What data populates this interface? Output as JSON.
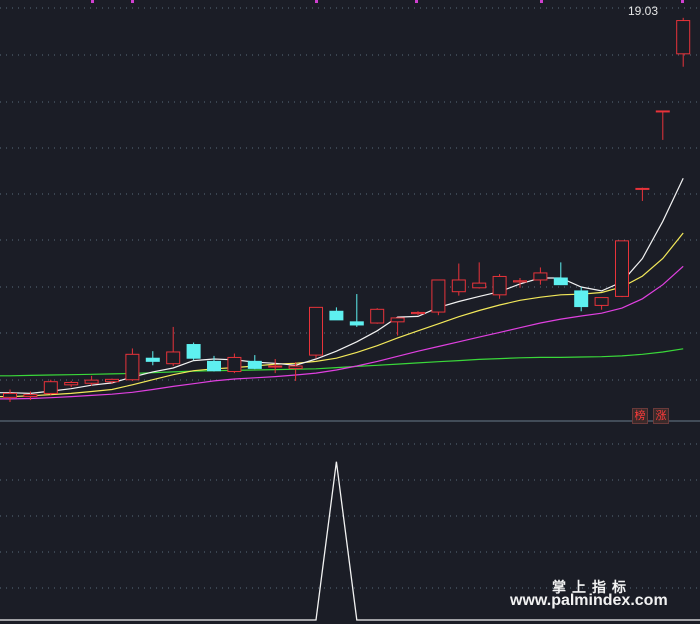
{
  "chart_data": {
    "type": "candlestick",
    "price_label": "19.03",
    "badges": [
      "榜",
      "涨"
    ],
    "watermark": {
      "line1": "掌上指标",
      "line2": "www.palmindex.com"
    },
    "colors": {
      "up": "#e8333a",
      "down": "#5ef0f0",
      "ma5": "#f2f2f2",
      "ma10": "#f2e85a",
      "ma20": "#e040e0",
      "ma60": "#3ad83a",
      "indicator": "#f2f2f2",
      "grid": "#5a6a7a"
    },
    "ylim": [
      9,
      19.3
    ],
    "candles": [
      {
        "o": 9.4,
        "h": 9.6,
        "l": 9.28,
        "c": 9.5
      },
      {
        "o": 9.42,
        "h": 9.55,
        "l": 9.33,
        "c": 9.47
      },
      {
        "o": 9.5,
        "h": 9.85,
        "l": 9.45,
        "c": 9.8
      },
      {
        "o": 9.72,
        "h": 9.82,
        "l": 9.66,
        "c": 9.78
      },
      {
        "o": 9.76,
        "h": 9.95,
        "l": 9.7,
        "c": 9.84
      },
      {
        "o": 9.8,
        "h": 9.88,
        "l": 9.74,
        "c": 9.86
      },
      {
        "o": 9.85,
        "h": 10.65,
        "l": 9.82,
        "c": 10.5
      },
      {
        "o": 10.4,
        "h": 10.58,
        "l": 10.22,
        "c": 10.32
      },
      {
        "o": 10.26,
        "h": 11.2,
        "l": 10.2,
        "c": 10.56
      },
      {
        "o": 10.75,
        "h": 10.8,
        "l": 10.35,
        "c": 10.4
      },
      {
        "o": 10.32,
        "h": 10.46,
        "l": 10.06,
        "c": 10.08
      },
      {
        "o": 10.06,
        "h": 10.52,
        "l": 10.02,
        "c": 10.42
      },
      {
        "o": 10.32,
        "h": 10.48,
        "l": 10.12,
        "c": 10.14
      },
      {
        "o": 10.18,
        "h": 10.38,
        "l": 10.02,
        "c": 10.2
      },
      {
        "o": 10.14,
        "h": 10.3,
        "l": 9.82,
        "c": 10.2
      },
      {
        "o": 10.48,
        "h": 11.7,
        "l": 10.4,
        "c": 11.7
      },
      {
        "o": 11.6,
        "h": 11.7,
        "l": 11.38,
        "c": 11.38
      },
      {
        "o": 11.33,
        "h": 12.04,
        "l": 11.2,
        "c": 11.25
      },
      {
        "o": 11.3,
        "h": 11.68,
        "l": 11.28,
        "c": 11.65
      },
      {
        "o": 11.33,
        "h": 11.38,
        "l": 10.98,
        "c": 11.43
      },
      {
        "o": 11.54,
        "h": 11.6,
        "l": 11.5,
        "c": 11.57
      },
      {
        "o": 11.58,
        "h": 12.38,
        "l": 11.5,
        "c": 12.4
      },
      {
        "o": 12.1,
        "h": 12.82,
        "l": 12,
        "c": 12.4
      },
      {
        "o": 12.2,
        "h": 12.85,
        "l": 12.18,
        "c": 12.32
      },
      {
        "o": 12.02,
        "h": 12.55,
        "l": 11.92,
        "c": 12.49
      },
      {
        "o": 12.35,
        "h": 12.45,
        "l": 12.2,
        "c": 12.38
      },
      {
        "o": 12.4,
        "h": 12.72,
        "l": 12.28,
        "c": 12.58
      },
      {
        "o": 12.45,
        "h": 12.85,
        "l": 12.3,
        "c": 12.28
      },
      {
        "o": 12.12,
        "h": 12.22,
        "l": 11.6,
        "c": 11.72
      },
      {
        "o": 11.75,
        "h": 11.92,
        "l": 11.64,
        "c": 11.95
      },
      {
        "o": 11.98,
        "h": 13.4,
        "l": 11.96,
        "c": 13.4
      },
      {
        "o": 14.74,
        "h": 14.76,
        "l": 14.42,
        "c": 14.74
      },
      {
        "o": 16.72,
        "h": 16.72,
        "l": 15.98,
        "c": 16.72
      },
      {
        "o": 18.18,
        "h": 19.1,
        "l": 17.85,
        "c": 19.03
      }
    ],
    "ma5": [
      9.52,
      9.5,
      9.56,
      9.62,
      9.71,
      9.77,
      9.92,
      10.05,
      10.15,
      10.34,
      10.38,
      10.36,
      10.3,
      10.27,
      10.22,
      10.38,
      10.58,
      10.82,
      11.1,
      11.45,
      11.47,
      11.7,
      11.85,
      11.98,
      12.1,
      12.3,
      12.45,
      12.45,
      12.22,
      12.12,
      12.35,
      12.95,
      13.9,
      15.0
    ],
    "ma10": [
      9.42,
      9.44,
      9.47,
      9.5,
      9.55,
      9.6,
      9.72,
      9.85,
      9.98,
      10.08,
      10.13,
      10.16,
      10.2,
      10.25,
      10.27,
      10.32,
      10.4,
      10.55,
      10.72,
      10.92,
      11.1,
      11.28,
      11.46,
      11.62,
      11.76,
      11.88,
      11.96,
      12.02,
      12.04,
      12.08,
      12.22,
      12.5,
      12.95,
      13.6
    ],
    "ma20": [
      9.36,
      9.37,
      9.39,
      9.42,
      9.45,
      9.48,
      9.53,
      9.6,
      9.68,
      9.75,
      9.82,
      9.87,
      9.9,
      9.93,
      9.97,
      10.02,
      10.1,
      10.2,
      10.32,
      10.45,
      10.58,
      10.7,
      10.82,
      10.94,
      11.06,
      11.18,
      11.3,
      11.4,
      11.48,
      11.55,
      11.68,
      11.92,
      12.28,
      12.75
    ],
    "ma60": [
      9.95,
      9.96,
      9.97,
      9.98,
      9.99,
      10.0,
      10.01,
      10.03,
      10.05,
      10.07,
      10.08,
      10.09,
      10.1,
      10.11,
      10.12,
      10.13,
      10.16,
      10.19,
      10.22,
      10.25,
      10.28,
      10.31,
      10.34,
      10.37,
      10.39,
      10.41,
      10.42,
      10.42,
      10.43,
      10.44,
      10.46,
      10.5,
      10.56,
      10.64
    ],
    "indicator": {
      "ylim": [
        0,
        1.2
      ],
      "values": [
        0,
        0,
        0,
        0,
        0,
        0,
        0,
        0,
        0,
        0,
        0,
        0,
        0,
        0,
        0,
        0,
        1,
        0,
        0,
        0,
        0,
        0,
        0,
        0,
        0,
        0,
        0,
        0,
        0,
        0,
        0,
        0,
        0,
        0
      ]
    }
  }
}
